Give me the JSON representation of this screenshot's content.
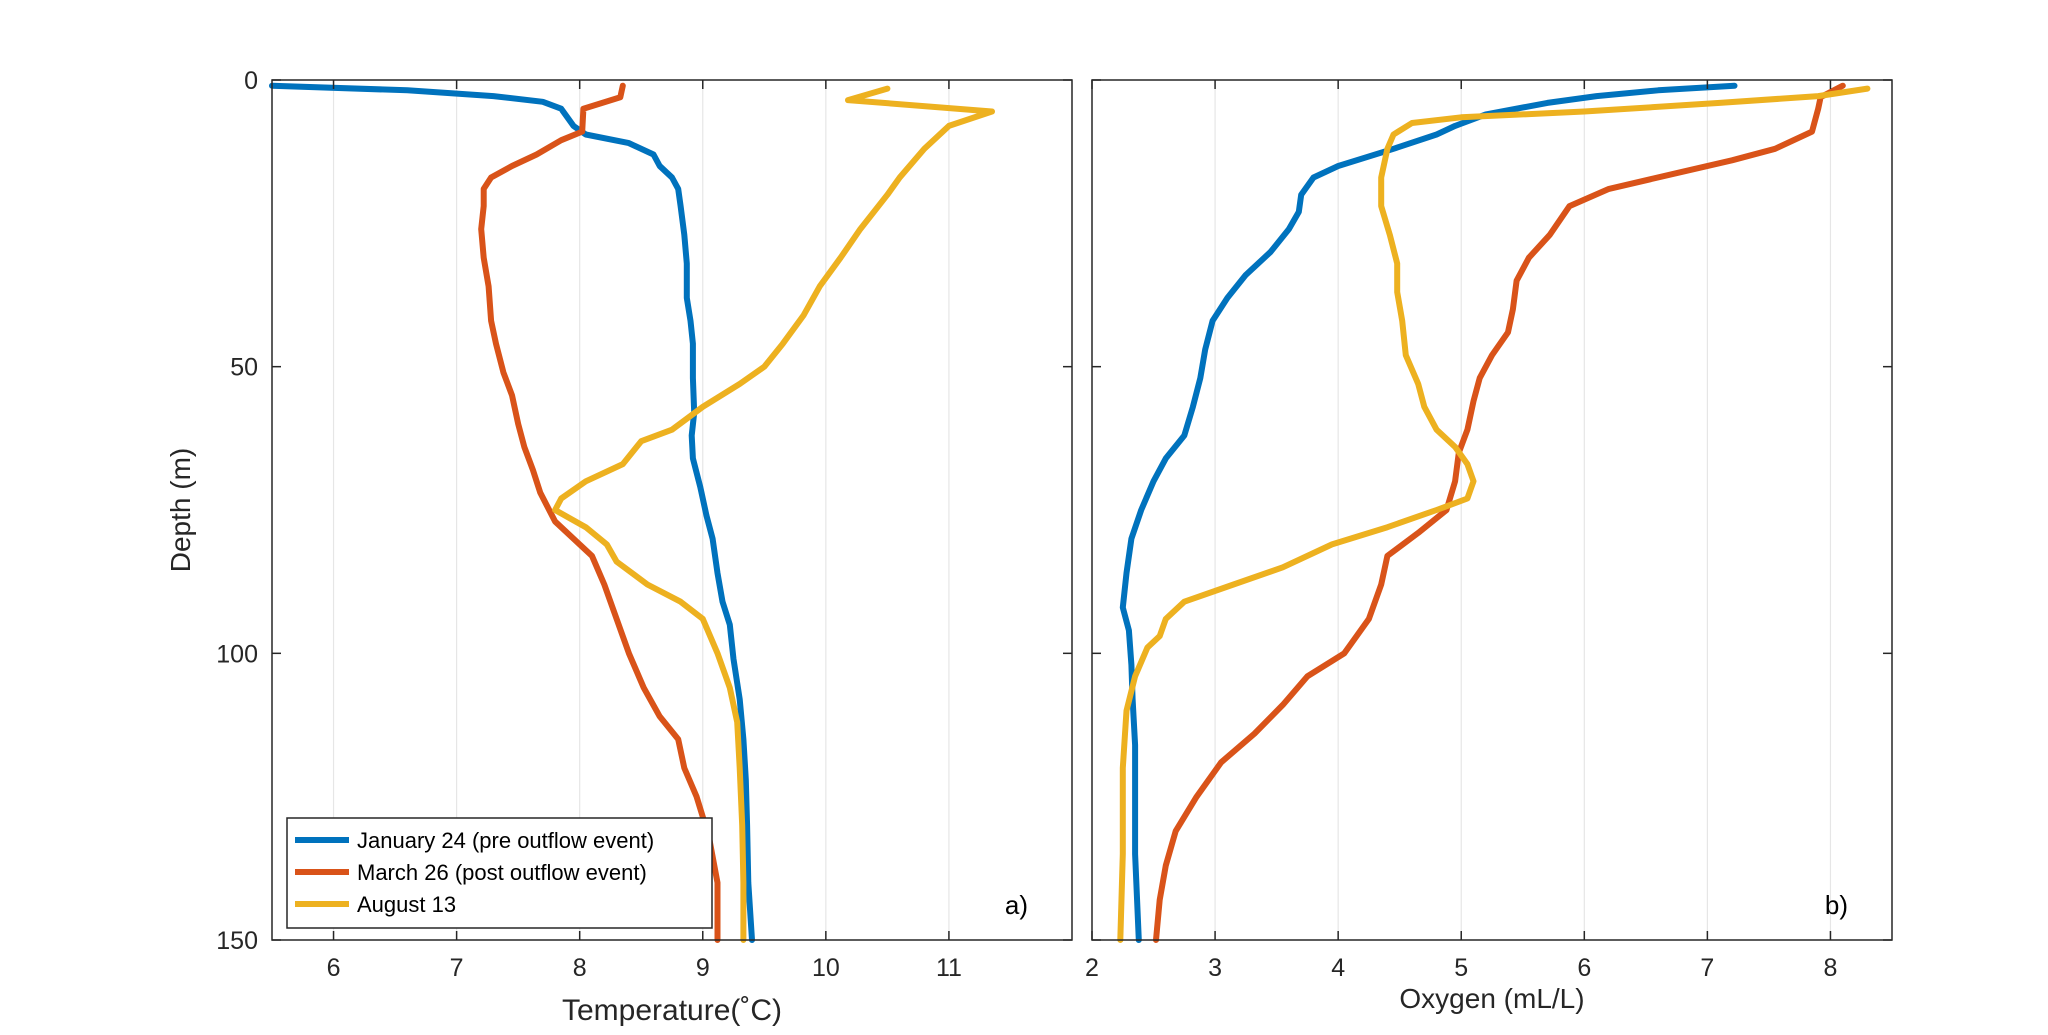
{
  "chart_data": [
    {
      "type": "line",
      "panel_label": "a)",
      "xlabel": "Temperature(˚C)",
      "ylabel": "Depth (m)",
      "xlim": [
        5.5,
        12
      ],
      "ylim": [
        0,
        150
      ],
      "y_reversed": true,
      "xticks": [
        6,
        7,
        8,
        9,
        10,
        11
      ],
      "yticks": [
        0,
        50,
        100,
        150
      ],
      "grid": "vertical",
      "legend": {
        "location": "bottom-left",
        "entries": [
          "January 24 (pre outflow event)",
          "March 26 (post outflow event)",
          "August 13"
        ]
      },
      "series": [
        {
          "name": "January 24 (pre outflow event)",
          "color": "#0072BD",
          "points": [
            [
              5.5,
              1
            ],
            [
              6.6,
              1.8
            ],
            [
              7.3,
              2.8
            ],
            [
              7.7,
              3.8
            ],
            [
              7.85,
              5
            ],
            [
              7.95,
              8
            ],
            [
              8.05,
              9.5
            ],
            [
              8.4,
              11
            ],
            [
              8.6,
              13
            ],
            [
              8.65,
              15
            ],
            [
              8.75,
              17
            ],
            [
              8.8,
              19
            ],
            [
              8.82,
              22
            ],
            [
              8.85,
              27
            ],
            [
              8.87,
              32
            ],
            [
              8.87,
              38
            ],
            [
              8.9,
              42
            ],
            [
              8.92,
              46
            ],
            [
              8.92,
              52
            ],
            [
              8.93,
              58
            ],
            [
              8.91,
              62
            ],
            [
              8.92,
              66
            ],
            [
              8.98,
              71
            ],
            [
              9.03,
              76
            ],
            [
              9.08,
              80
            ],
            [
              9.12,
              86
            ],
            [
              9.16,
              91
            ],
            [
              9.22,
              95
            ],
            [
              9.25,
              101
            ],
            [
              9.3,
              108
            ],
            [
              9.33,
              115
            ],
            [
              9.35,
              122
            ],
            [
              9.36,
              130
            ],
            [
              9.37,
              140
            ],
            [
              9.4,
              150
            ]
          ]
        },
        {
          "name": "March 26 (post outflow event)",
          "color": "#D95319",
          "points": [
            [
              8.35,
              1
            ],
            [
              8.33,
              3
            ],
            [
              8.03,
              5
            ],
            [
              8.02,
              9
            ],
            [
              7.85,
              10.5
            ],
            [
              7.65,
              13
            ],
            [
              7.45,
              15
            ],
            [
              7.28,
              17
            ],
            [
              7.22,
              19
            ],
            [
              7.22,
              22
            ],
            [
              7.2,
              26
            ],
            [
              7.22,
              31
            ],
            [
              7.26,
              36
            ],
            [
              7.28,
              42
            ],
            [
              7.32,
              46
            ],
            [
              7.38,
              51
            ],
            [
              7.45,
              55
            ],
            [
              7.5,
              60
            ],
            [
              7.55,
              64
            ],
            [
              7.62,
              68
            ],
            [
              7.68,
              72
            ],
            [
              7.8,
              77
            ],
            [
              7.95,
              80
            ],
            [
              8.1,
              83
            ],
            [
              8.2,
              88
            ],
            [
              8.3,
              94
            ],
            [
              8.4,
              100
            ],
            [
              8.52,
              106
            ],
            [
              8.65,
              111
            ],
            [
              8.8,
              115
            ],
            [
              8.85,
              120
            ],
            [
              8.95,
              125
            ],
            [
              9.05,
              132
            ],
            [
              9.12,
              140
            ],
            [
              9.12,
              150
            ]
          ]
        },
        {
          "name": "August 13",
          "color": "#EDB120",
          "points": [
            [
              10.5,
              1.5
            ],
            [
              10.18,
              3.5
            ],
            [
              11.35,
              5.5
            ],
            [
              11.0,
              8
            ],
            [
              10.8,
              12
            ],
            [
              10.6,
              17
            ],
            [
              10.5,
              20
            ],
            [
              10.28,
              26
            ],
            [
              10.12,
              31
            ],
            [
              9.95,
              36
            ],
            [
              9.82,
              41
            ],
            [
              9.65,
              46
            ],
            [
              9.5,
              50
            ],
            [
              9.3,
              53
            ],
            [
              9.0,
              57
            ],
            [
              8.75,
              61
            ],
            [
              8.5,
              63
            ],
            [
              8.35,
              67
            ],
            [
              8.05,
              70
            ],
            [
              7.85,
              73
            ],
            [
              7.8,
              75
            ],
            [
              8.05,
              78
            ],
            [
              8.22,
              81
            ],
            [
              8.3,
              84
            ],
            [
              8.55,
              88
            ],
            [
              8.82,
              91
            ],
            [
              9.0,
              94
            ],
            [
              9.12,
              100
            ],
            [
              9.22,
              106
            ],
            [
              9.28,
              112
            ],
            [
              9.3,
              120
            ],
            [
              9.32,
              130
            ],
            [
              9.33,
              140
            ],
            [
              9.33,
              150
            ]
          ]
        }
      ]
    },
    {
      "type": "line",
      "panel_label": "b)",
      "xlabel": "Oxygen (mL/L)",
      "ylabel": "",
      "xlim": [
        2,
        8.5
      ],
      "ylim": [
        0,
        150
      ],
      "y_reversed": true,
      "xticks": [
        2,
        3,
        4,
        5,
        6,
        7,
        8
      ],
      "yticks": [
        0,
        50,
        100,
        150
      ],
      "grid": "vertical",
      "series": [
        {
          "name": "January 24 (pre outflow event)",
          "color": "#0072BD",
          "points": [
            [
              7.22,
              1
            ],
            [
              6.6,
              1.8
            ],
            [
              6.1,
              2.8
            ],
            [
              5.7,
              4
            ],
            [
              5.2,
              6
            ],
            [
              4.95,
              8
            ],
            [
              4.8,
              9.5
            ],
            [
              4.45,
              12
            ],
            [
              4.0,
              15
            ],
            [
              3.8,
              17
            ],
            [
              3.7,
              20
            ],
            [
              3.68,
              23
            ],
            [
              3.6,
              26
            ],
            [
              3.45,
              30
            ],
            [
              3.25,
              34
            ],
            [
              3.1,
              38
            ],
            [
              2.98,
              42
            ],
            [
              2.92,
              47
            ],
            [
              2.88,
              52
            ],
            [
              2.82,
              57
            ],
            [
              2.75,
              62
            ],
            [
              2.6,
              66
            ],
            [
              2.5,
              70
            ],
            [
              2.4,
              75
            ],
            [
              2.32,
              80
            ],
            [
              2.28,
              86
            ],
            [
              2.25,
              92
            ],
            [
              2.3,
              96
            ],
            [
              2.32,
              102
            ],
            [
              2.33,
              108
            ],
            [
              2.35,
              116
            ],
            [
              2.35,
              125
            ],
            [
              2.35,
              135
            ],
            [
              2.38,
              150
            ]
          ]
        },
        {
          "name": "March 26 (post outflow event)",
          "color": "#D95319",
          "points": [
            [
              8.1,
              1
            ],
            [
              7.92,
              3
            ],
            [
              7.9,
              5
            ],
            [
              7.85,
              9
            ],
            [
              7.55,
              12
            ],
            [
              7.2,
              14
            ],
            [
              6.8,
              16
            ],
            [
              6.2,
              19
            ],
            [
              5.88,
              22
            ],
            [
              5.72,
              27
            ],
            [
              5.55,
              31
            ],
            [
              5.45,
              35
            ],
            [
              5.42,
              40
            ],
            [
              5.38,
              44
            ],
            [
              5.25,
              48
            ],
            [
              5.15,
              52
            ],
            [
              5.1,
              56
            ],
            [
              5.05,
              61
            ],
            [
              4.98,
              65
            ],
            [
              4.95,
              70
            ],
            [
              4.88,
              75
            ],
            [
              4.65,
              79
            ],
            [
              4.4,
              83
            ],
            [
              4.35,
              88
            ],
            [
              4.25,
              94
            ],
            [
              4.05,
              100
            ],
            [
              3.75,
              104
            ],
            [
              3.55,
              109
            ],
            [
              3.32,
              114
            ],
            [
              3.05,
              119
            ],
            [
              2.85,
              125
            ],
            [
              2.68,
              131
            ],
            [
              2.6,
              137
            ],
            [
              2.55,
              143
            ],
            [
              2.52,
              150
            ]
          ]
        },
        {
          "name": "August 13",
          "color": "#EDB120",
          "points": [
            [
              8.3,
              1.5
            ],
            [
              7.9,
              2.8
            ],
            [
              7.1,
              4
            ],
            [
              6.0,
              5.5
            ],
            [
              5.0,
              6.5
            ],
            [
              4.6,
              7.5
            ],
            [
              4.45,
              9.5
            ],
            [
              4.4,
              12
            ],
            [
              4.35,
              17
            ],
            [
              4.35,
              22
            ],
            [
              4.42,
              27
            ],
            [
              4.48,
              32
            ],
            [
              4.48,
              37
            ],
            [
              4.52,
              42
            ],
            [
              4.55,
              48
            ],
            [
              4.65,
              53
            ],
            [
              4.7,
              57
            ],
            [
              4.8,
              61
            ],
            [
              4.95,
              64
            ],
            [
              5.05,
              67
            ],
            [
              5.1,
              70
            ],
            [
              5.05,
              73
            ],
            [
              4.8,
              75
            ],
            [
              4.4,
              78
            ],
            [
              3.95,
              81
            ],
            [
              3.55,
              85
            ],
            [
              3.15,
              88
            ],
            [
              2.75,
              91
            ],
            [
              2.6,
              94
            ],
            [
              2.55,
              97
            ],
            [
              2.45,
              99
            ],
            [
              2.35,
              104
            ],
            [
              2.28,
              110
            ],
            [
              2.25,
              120
            ],
            [
              2.25,
              135
            ],
            [
              2.23,
              150
            ]
          ]
        }
      ]
    }
  ]
}
